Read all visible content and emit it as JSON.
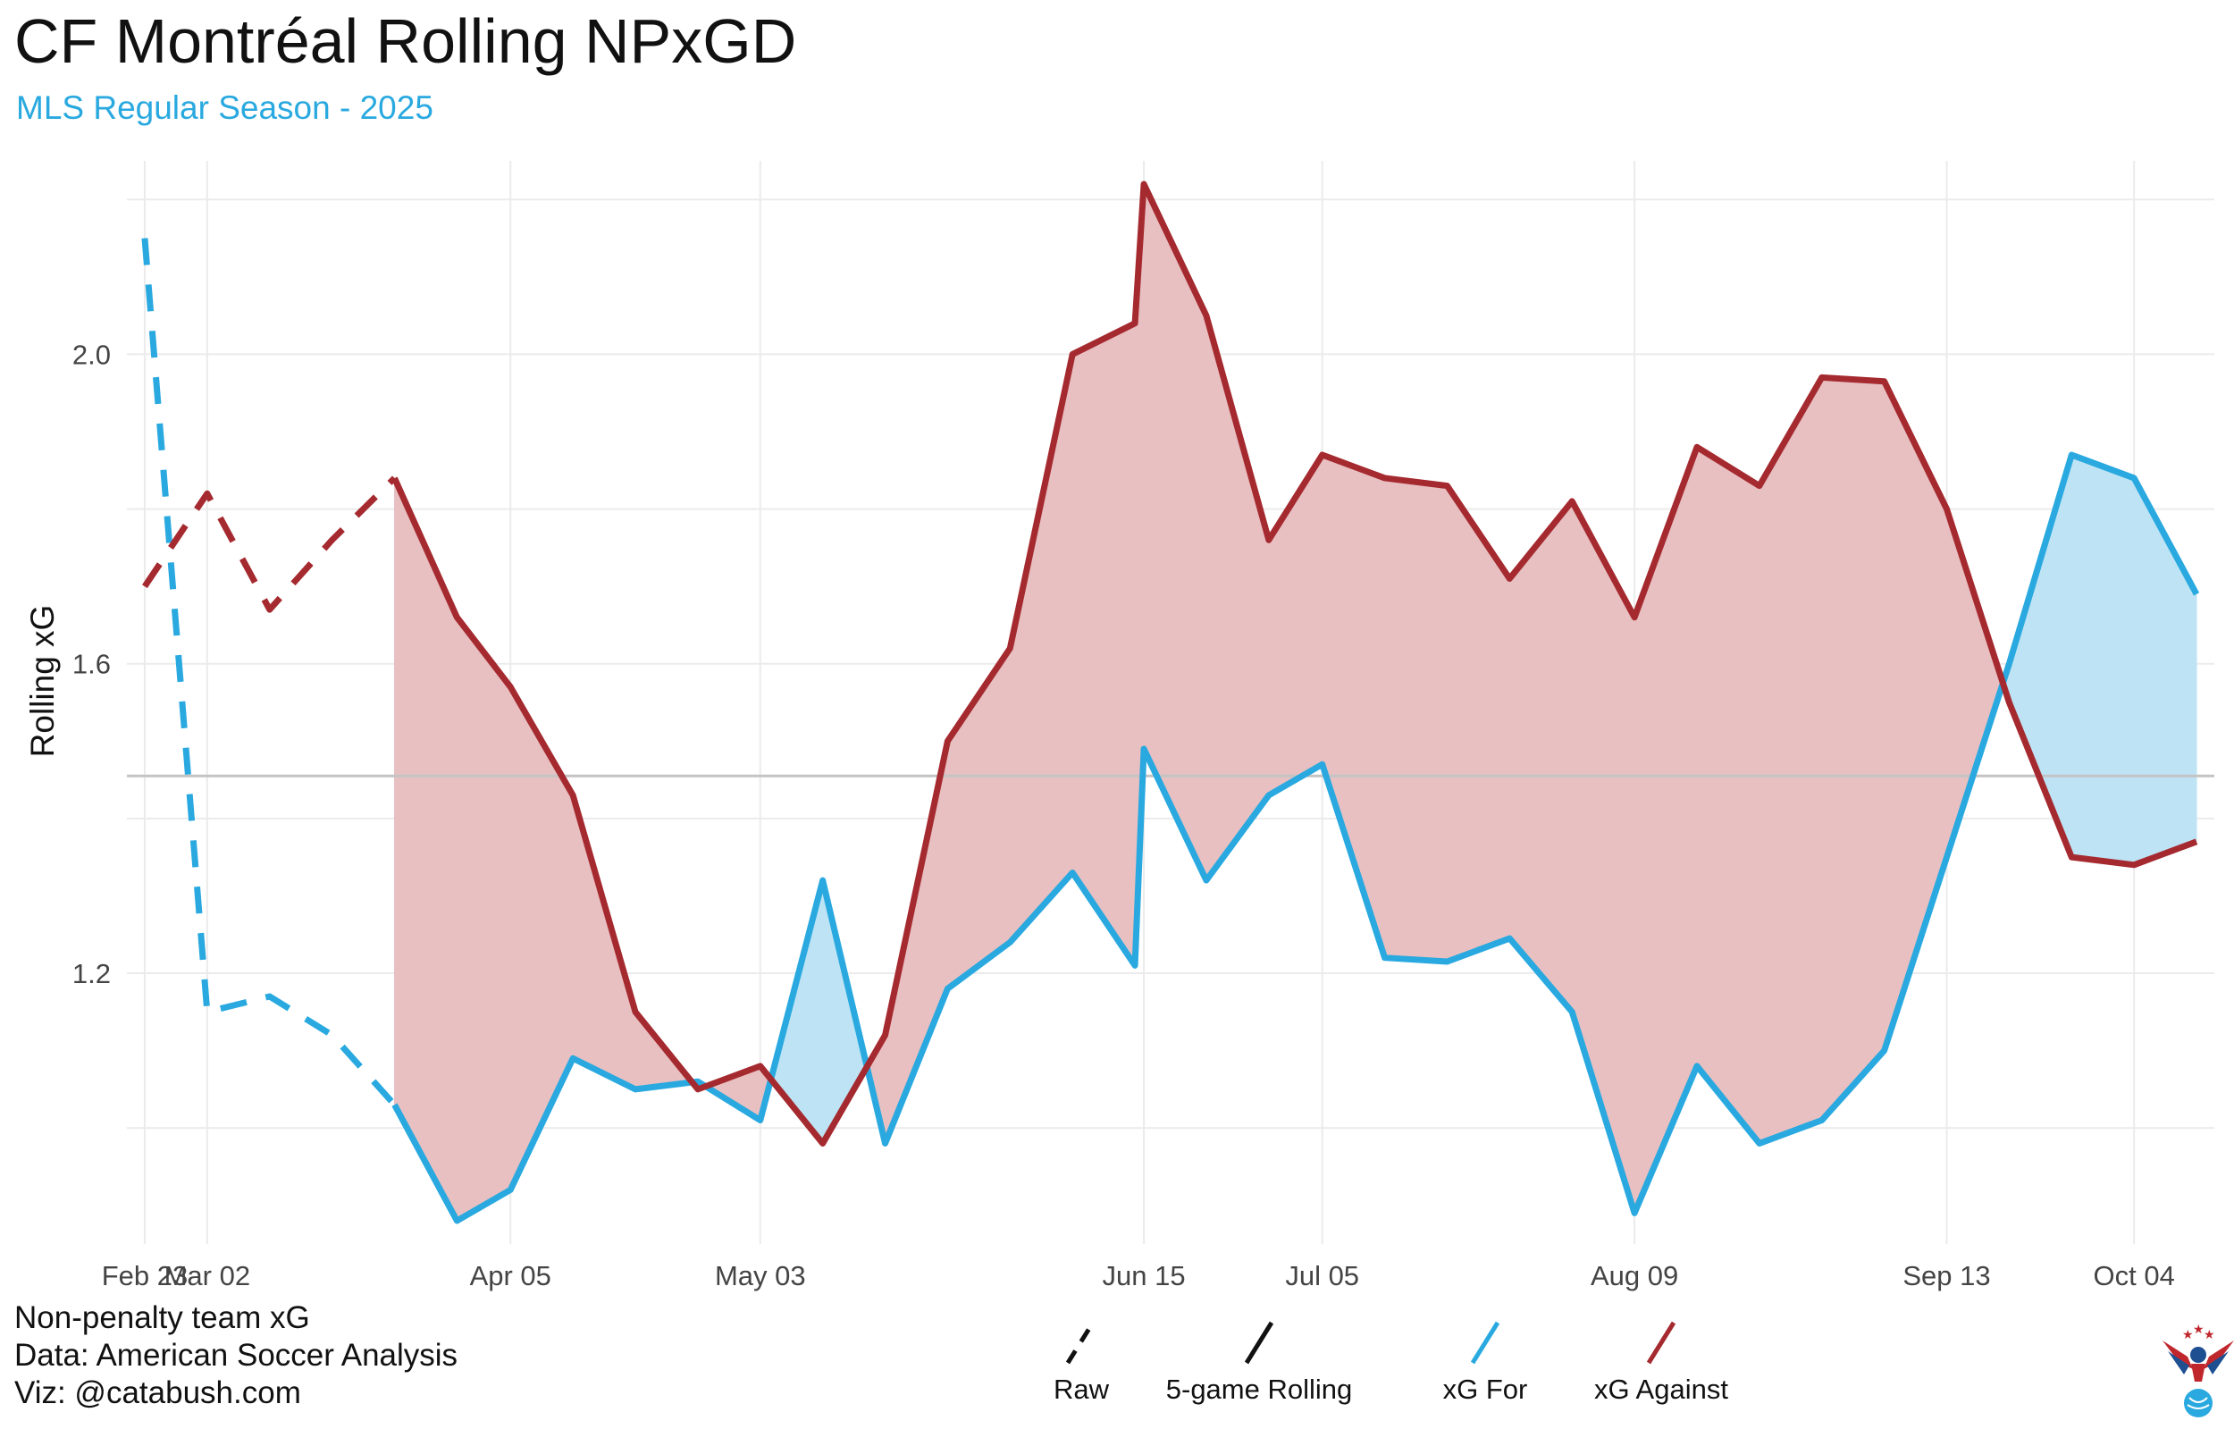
{
  "header": {
    "title": "CF Montréal Rolling NPxGD",
    "subtitle": "MLS Regular Season - 2025"
  },
  "caption": {
    "line1": "Non-penalty team xG",
    "line2": "Data: American Soccer Analysis",
    "line3": "Viz: @catabush.com"
  },
  "legend": {
    "raw_label": "Raw",
    "rolling_label": "5-game Rolling",
    "xg_for_label": "xG For",
    "xg_against_label": "xG Against"
  },
  "chart_data": {
    "type": "line",
    "title": "CF Montréal Rolling NPxGD",
    "subtitle": "MLS Regular Season - 2025",
    "xlabel": "",
    "ylabel": "Rolling xG",
    "x_ticks": [
      {
        "label": "Feb 23",
        "day": 0
      },
      {
        "label": "Mar 02",
        "day": 7
      },
      {
        "label": "Apr 05",
        "day": 41
      },
      {
        "label": "May 03",
        "day": 69
      },
      {
        "label": "Jun 15",
        "day": 112
      },
      {
        "label": "Jul 05",
        "day": 132
      },
      {
        "label": "Aug 09",
        "day": 167
      },
      {
        "label": "Sep 13",
        "day": 202
      },
      {
        "label": "Oct 04",
        "day": 223
      }
    ],
    "y_ticks": [
      1.2,
      1.6,
      2.0
    ],
    "ylim": [
      0.85,
      2.25
    ],
    "xlim": [
      -2,
      232
    ],
    "reference_line": 1.455,
    "rolling_start_index": 4,
    "colors": {
      "xg_for": "#29a9df",
      "xg_against": "#a52a2f",
      "fill_for": "#bde3f4",
      "fill_against": "#e8c0c2",
      "grid": "#ebebeb",
      "reference": "#c4c4c4"
    },
    "games_day": [
      0,
      7,
      14,
      21,
      28,
      35,
      41,
      48,
      55,
      62,
      69,
      76,
      83,
      90,
      97,
      104,
      111,
      112,
      119,
      126,
      132,
      139,
      146,
      153,
      160,
      167,
      174,
      181,
      188,
      195,
      202,
      209,
      216,
      223,
      230
    ],
    "series": [
      {
        "name": "xG For",
        "values": [
          2.15,
          1.15,
          1.17,
          1.12,
          1.03,
          0.88,
          0.92,
          1.09,
          1.05,
          1.06,
          1.01,
          1.32,
          0.98,
          1.18,
          1.24,
          1.33,
          1.21,
          1.49,
          1.32,
          1.43,
          1.47,
          1.22,
          1.215,
          1.245,
          1.15,
          0.89,
          1.08,
          0.98,
          1.01,
          1.1,
          1.35,
          1.6,
          1.87,
          1.84,
          1.69
        ]
      },
      {
        "name": "xG Against",
        "values": [
          1.7,
          1.82,
          1.67,
          1.76,
          1.84,
          1.66,
          1.57,
          1.43,
          1.15,
          1.05,
          1.08,
          0.98,
          1.12,
          1.5,
          1.62,
          2.0,
          2.04,
          2.22,
          2.05,
          1.76,
          1.87,
          1.84,
          1.83,
          1.71,
          1.81,
          1.66,
          1.88,
          1.83,
          1.97,
          1.965,
          1.8,
          1.55,
          1.35,
          1.34,
          1.37
        ]
      }
    ]
  }
}
